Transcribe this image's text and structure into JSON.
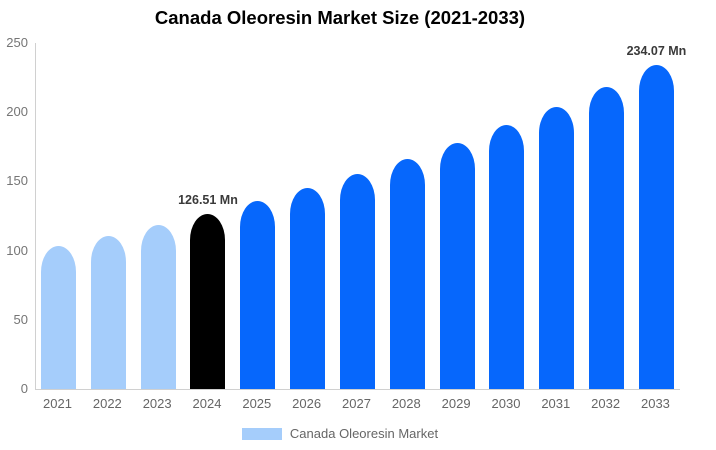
{
  "chart_data": {
    "type": "bar",
    "title": "Canada Oleoresin Market Size (2021-2033)",
    "xlabel": "",
    "ylabel": "",
    "unit": "Mn",
    "categories": [
      "2021",
      "2022",
      "2023",
      "2024",
      "2025",
      "2026",
      "2027",
      "2028",
      "2029",
      "2030",
      "2031",
      "2032",
      "2033"
    ],
    "values": [
      103.1,
      110.4,
      118.2,
      126.51,
      135.5,
      145.0,
      155.3,
      166.3,
      178.0,
      190.6,
      204.1,
      218.5,
      234.07
    ],
    "bar_colors": [
      "#a5cdfb",
      "#a5cdfb",
      "#a5cdfb",
      "#000000",
      "#0667fc",
      "#0667fc",
      "#0667fc",
      "#0667fc",
      "#0667fc",
      "#0667fc",
      "#0667fc",
      "#0667fc",
      "#0667fc"
    ],
    "annotations": [
      {
        "index": 3,
        "text": "126.51 Mn"
      },
      {
        "index": 12,
        "text": "234.07 Mn"
      }
    ],
    "ylim": [
      0,
      250
    ],
    "yticks": [
      0,
      50,
      100,
      150,
      200,
      250
    ],
    "grid": false,
    "legend": {
      "position": "bottom",
      "items": [
        {
          "label": "Canada Oleoresin Market",
          "swatch_color": "#a5cdfb"
        }
      ]
    },
    "colors": {
      "past_bars": "#a5cdfb",
      "highlight_bar": "#000000",
      "forecast_bars": "#0667fc",
      "axis_line": "#d0d0d0",
      "tick_text": "#757575",
      "xtick_text": "#666666",
      "annotation_text": "#3a3a3a",
      "legend_text": "#666666"
    }
  }
}
